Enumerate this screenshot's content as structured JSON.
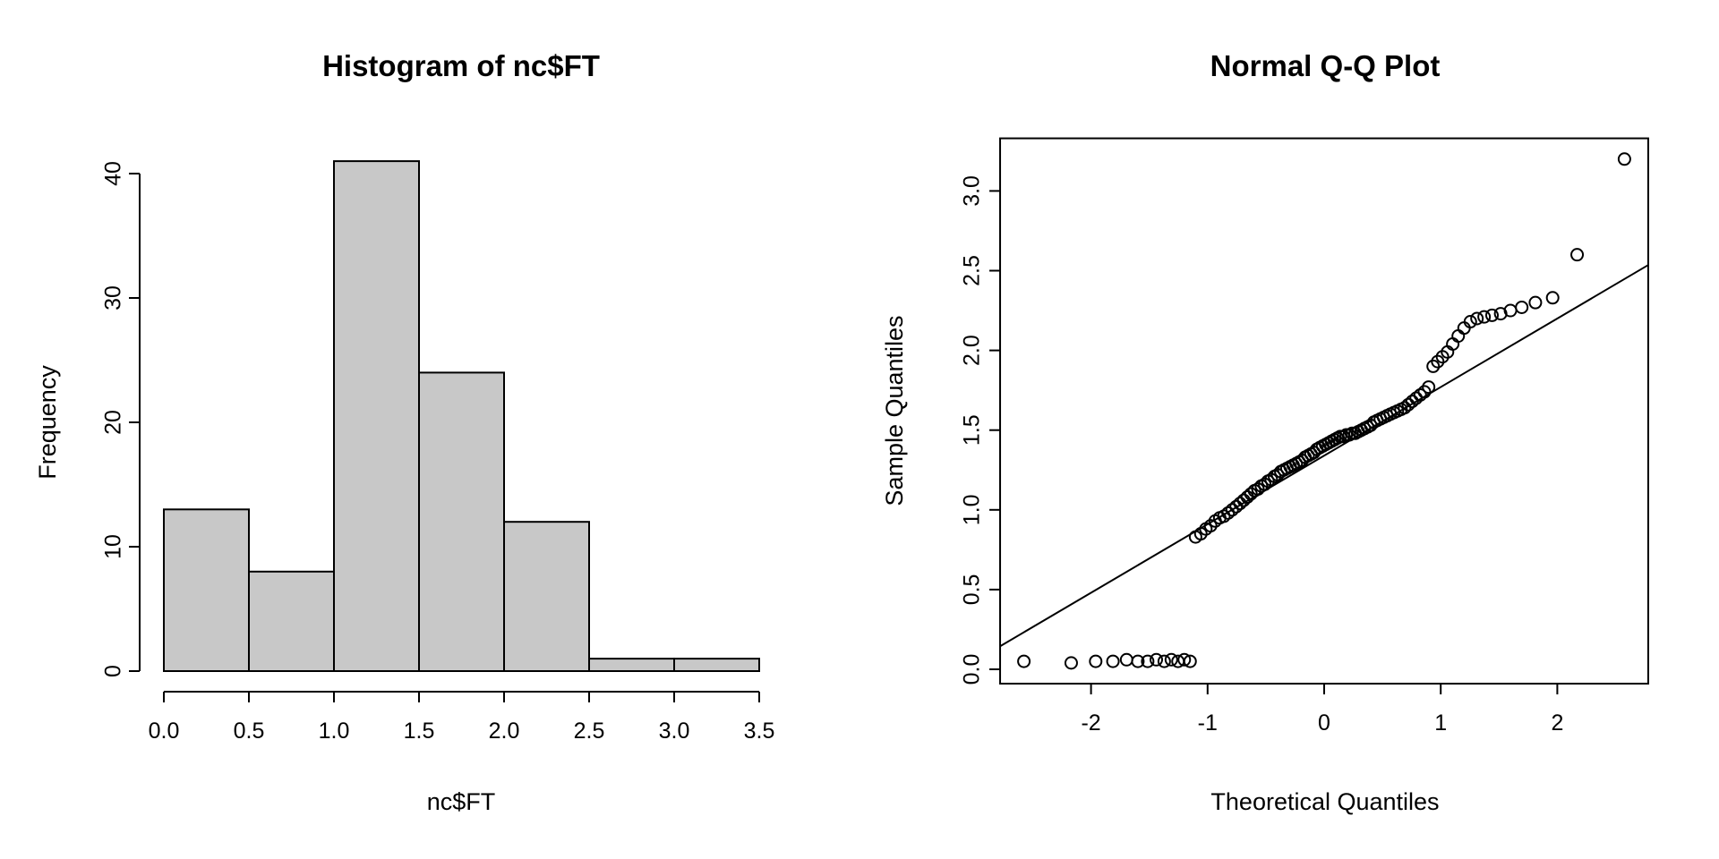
{
  "page": {
    "background": "#ffffff",
    "foreground": "#000000"
  },
  "chart_data": [
    {
      "type": "bar",
      "subtype": "histogram",
      "title": "Histogram of nc$FT",
      "xlabel": "nc$FT",
      "ylabel": "Frequency",
      "bin_breaks": [
        0.0,
        0.5,
        1.0,
        1.5,
        2.0,
        2.5,
        3.0,
        3.5
      ],
      "counts": [
        13,
        8,
        41,
        24,
        12,
        1,
        1
      ],
      "xlim": [
        0.0,
        3.5
      ],
      "ylim": [
        0,
        41
      ],
      "x_ticks": {
        "values": [
          0.0,
          0.5,
          1.0,
          1.5,
          2.0,
          2.5,
          3.0,
          3.5
        ],
        "labels": [
          "0.0",
          "0.5",
          "1.0",
          "1.5",
          "2.0",
          "2.5",
          "3.0",
          "3.5"
        ]
      },
      "y_ticks": {
        "values": [
          0,
          10,
          20,
          30,
          40
        ],
        "labels": [
          "0",
          "10",
          "20",
          "30",
          "40"
        ]
      },
      "bar_fill": "#c8c8c8",
      "bar_stroke": "#000000",
      "grid": false,
      "legend": "none"
    },
    {
      "type": "scatter",
      "subtype": "normal-qq-plot",
      "title": "Normal Q-Q Plot",
      "xlabel": "Theoretical Quantiles",
      "ylabel": "Sample Quantiles",
      "xlim": [
        -2.78,
        2.78
      ],
      "ylim": [
        -0.09,
        3.33
      ],
      "x_ticks": {
        "values": [
          -2,
          -1,
          0,
          1,
          2
        ],
        "labels": [
          "-2",
          "-1",
          "0",
          "1",
          "2"
        ]
      },
      "y_ticks": {
        "values": [
          0.0,
          0.5,
          1.0,
          1.5,
          2.0,
          2.5,
          3.0
        ],
        "labels": [
          "0.0",
          "0.5",
          "1.0",
          "1.5",
          "2.0",
          "2.5",
          "3.0"
        ]
      },
      "marker": {
        "shape": "open-circle",
        "color": "#000000",
        "radius_px": 6.5
      },
      "reference_line": {
        "intercept": 1.34,
        "slope": 0.43,
        "color": "#000000"
      },
      "grid": false,
      "legend": "none",
      "points": [
        [
          -2.576,
          0.05
        ],
        [
          -2.17,
          0.04
        ],
        [
          -1.96,
          0.05
        ],
        [
          -1.812,
          0.05
        ],
        [
          -1.695,
          0.06
        ],
        [
          -1.598,
          0.05
        ],
        [
          -1.514,
          0.05
        ],
        [
          -1.44,
          0.06
        ],
        [
          -1.372,
          0.05
        ],
        [
          -1.311,
          0.06
        ],
        [
          -1.254,
          0.05
        ],
        [
          -1.2,
          0.06
        ],
        [
          -1.15,
          0.05
        ],
        [
          -1.103,
          0.83
        ],
        [
          -1.058,
          0.85
        ],
        [
          -1.015,
          0.88
        ],
        [
          -0.974,
          0.9
        ],
        [
          -0.935,
          0.93
        ],
        [
          -0.896,
          0.95
        ],
        [
          -0.86,
          0.96
        ],
        [
          -0.824,
          0.98
        ],
        [
          -0.789,
          1.0
        ],
        [
          -0.755,
          1.02
        ],
        [
          -0.722,
          1.04
        ],
        [
          -0.69,
          1.06
        ],
        [
          -0.659,
          1.08
        ],
        [
          -0.628,
          1.1
        ],
        [
          -0.598,
          1.12
        ],
        [
          -0.568,
          1.13
        ],
        [
          -0.539,
          1.15
        ],
        [
          -0.51,
          1.16
        ],
        [
          -0.482,
          1.18
        ],
        [
          -0.454,
          1.19
        ],
        [
          -0.426,
          1.21
        ],
        [
          -0.399,
          1.22
        ],
        [
          -0.372,
          1.24
        ],
        [
          -0.345,
          1.25
        ],
        [
          -0.319,
          1.26
        ],
        [
          -0.292,
          1.27
        ],
        [
          -0.266,
          1.28
        ],
        [
          -0.24,
          1.29
        ],
        [
          -0.215,
          1.3
        ],
        [
          -0.189,
          1.31
        ],
        [
          -0.164,
          1.33
        ],
        [
          -0.138,
          1.34
        ],
        [
          -0.113,
          1.35
        ],
        [
          -0.088,
          1.36
        ],
        [
          -0.063,
          1.38
        ],
        [
          -0.038,
          1.39
        ],
        [
          -0.013,
          1.4
        ],
        [
          0.013,
          1.41
        ],
        [
          0.038,
          1.42
        ],
        [
          0.063,
          1.43
        ],
        [
          0.088,
          1.44
        ],
        [
          0.113,
          1.45
        ],
        [
          0.138,
          1.46
        ],
        [
          0.164,
          1.46
        ],
        [
          0.189,
          1.47
        ],
        [
          0.215,
          1.47
        ],
        [
          0.24,
          1.48
        ],
        [
          0.266,
          1.48
        ],
        [
          0.292,
          1.49
        ],
        [
          0.319,
          1.5
        ],
        [
          0.345,
          1.51
        ],
        [
          0.372,
          1.52
        ],
        [
          0.399,
          1.53
        ],
        [
          0.426,
          1.55
        ],
        [
          0.454,
          1.56
        ],
        [
          0.482,
          1.57
        ],
        [
          0.51,
          1.58
        ],
        [
          0.539,
          1.59
        ],
        [
          0.568,
          1.6
        ],
        [
          0.598,
          1.61
        ],
        [
          0.628,
          1.62
        ],
        [
          0.659,
          1.63
        ],
        [
          0.69,
          1.64
        ],
        [
          0.722,
          1.66
        ],
        [
          0.755,
          1.68
        ],
        [
          0.789,
          1.7
        ],
        [
          0.824,
          1.72
        ],
        [
          0.86,
          1.74
        ],
        [
          0.896,
          1.77
        ],
        [
          0.935,
          1.9
        ],
        [
          0.974,
          1.93
        ],
        [
          1.015,
          1.96
        ],
        [
          1.058,
          1.99
        ],
        [
          1.103,
          2.04
        ],
        [
          1.15,
          2.09
        ],
        [
          1.2,
          2.14
        ],
        [
          1.254,
          2.18
        ],
        [
          1.311,
          2.2
        ],
        [
          1.372,
          2.21
        ],
        [
          1.44,
          2.22
        ],
        [
          1.514,
          2.23
        ],
        [
          1.598,
          2.25
        ],
        [
          1.695,
          2.27
        ],
        [
          1.812,
          2.3
        ],
        [
          1.96,
          2.33
        ],
        [
          2.17,
          2.6
        ],
        [
          2.576,
          3.2
        ]
      ]
    }
  ]
}
